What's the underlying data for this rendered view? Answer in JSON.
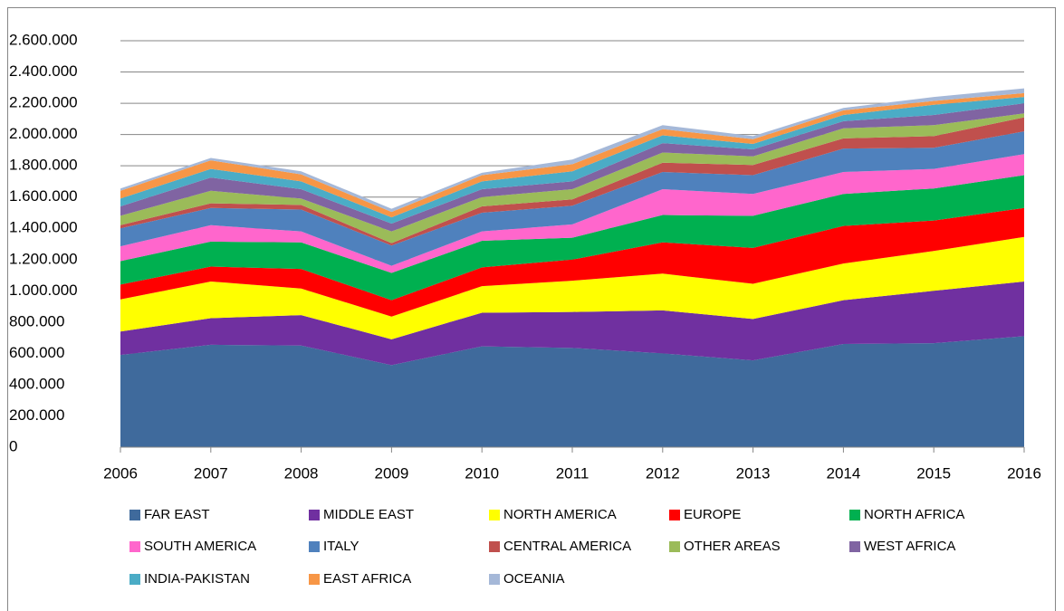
{
  "chart_data": {
    "type": "stacked-area",
    "x": [
      2006,
      2007,
      2008,
      2009,
      2010,
      2011,
      2012,
      2013,
      2014,
      2015,
      2016
    ],
    "xlim": [
      2006,
      2016
    ],
    "xticks": [
      2006,
      2007,
      2008,
      2009,
      2010,
      2011,
      2012,
      2013,
      2014,
      2015,
      2016
    ],
    "ylim": [
      0,
      2600000
    ],
    "yticks": [
      0,
      {
        "value": 200000,
        "label": "200.000"
      },
      {
        "value": 400000,
        "label": "400.000"
      },
      {
        "value": 600000,
        "label": "600.000"
      },
      {
        "value": 800000,
        "label": "800.000"
      },
      {
        "value": 1000000,
        "label": "1.000.000"
      },
      {
        "value": 1200000,
        "label": "1.200.000"
      },
      {
        "value": 1400000,
        "label": "1.400.000"
      },
      {
        "value": 1600000,
        "label": "1.600.000"
      },
      {
        "value": 1800000,
        "label": "1.800.000"
      },
      {
        "value": 2000000,
        "label": "2.000.000"
      },
      {
        "value": 2200000,
        "label": "2.200.000"
      },
      {
        "value": 2400000,
        "label": "2.400.000"
      },
      {
        "value": 2600000,
        "label": "2.600.000"
      }
    ],
    "grid": true,
    "legend": "bottom",
    "series": [
      {
        "name": "FAR EAST",
        "color": "#3f6a9c",
        "values": [
          590000,
          655000,
          650000,
          525000,
          645000,
          635000,
          600000,
          555000,
          660000,
          665000,
          710000
        ]
      },
      {
        "name": "MIDDLE EAST",
        "color": "#7030a0",
        "values": [
          150000,
          170000,
          195000,
          165000,
          215000,
          230000,
          275000,
          265000,
          280000,
          335000,
          350000
        ]
      },
      {
        "name": "NORTH AMERICA",
        "color": "#ffff00",
        "values": [
          205000,
          235000,
          170000,
          145000,
          170000,
          200000,
          235000,
          225000,
          235000,
          255000,
          285000
        ]
      },
      {
        "name": "EUROPE",
        "color": "#ff0000",
        "values": [
          95000,
          95000,
          125000,
          105000,
          120000,
          135000,
          200000,
          230000,
          240000,
          195000,
          185000
        ]
      },
      {
        "name": "NORTH AFRICA",
        "color": "#00b050",
        "values": [
          150000,
          160000,
          170000,
          175000,
          170000,
          140000,
          175000,
          205000,
          205000,
          205000,
          210000
        ]
      },
      {
        "name": "SOUTH AMERICA",
        "color": "#ff66cc",
        "values": [
          95000,
          105000,
          70000,
          45000,
          60000,
          85000,
          165000,
          140000,
          140000,
          125000,
          135000
        ]
      },
      {
        "name": "ITALY",
        "color": "#4f81bd",
        "values": [
          115000,
          110000,
          140000,
          130000,
          120000,
          120000,
          110000,
          120000,
          150000,
          135000,
          145000
        ]
      },
      {
        "name": "CENTRAL AMERICA",
        "color": "#c0504d",
        "values": [
          20000,
          30000,
          30000,
          15000,
          40000,
          40000,
          60000,
          65000,
          65000,
          75000,
          90000
        ]
      },
      {
        "name": "OTHER AREAS",
        "color": "#9bbb59",
        "values": [
          60000,
          80000,
          40000,
          75000,
          60000,
          65000,
          65000,
          55000,
          65000,
          70000,
          25000
        ]
      },
      {
        "name": "WEST AFRICA",
        "color": "#8064a2",
        "values": [
          60000,
          85000,
          60000,
          50000,
          50000,
          50000,
          60000,
          45000,
          45000,
          65000,
          65000
        ]
      },
      {
        "name": "INDIA-PAKISTAN",
        "color": "#4bacc6",
        "values": [
          50000,
          55000,
          50000,
          40000,
          50000,
          65000,
          50000,
          35000,
          40000,
          65000,
          40000
        ]
      },
      {
        "name": "EAST AFRICA",
        "color": "#f79646",
        "values": [
          50000,
          55000,
          45000,
          35000,
          40000,
          45000,
          40000,
          30000,
          30000,
          25000,
          25000
        ]
      },
      {
        "name": "OCEANIA",
        "color": "#a5b8d8",
        "values": [
          15000,
          15000,
          20000,
          20000,
          15000,
          30000,
          25000,
          20000,
          15000,
          25000,
          30000
        ]
      }
    ]
  }
}
